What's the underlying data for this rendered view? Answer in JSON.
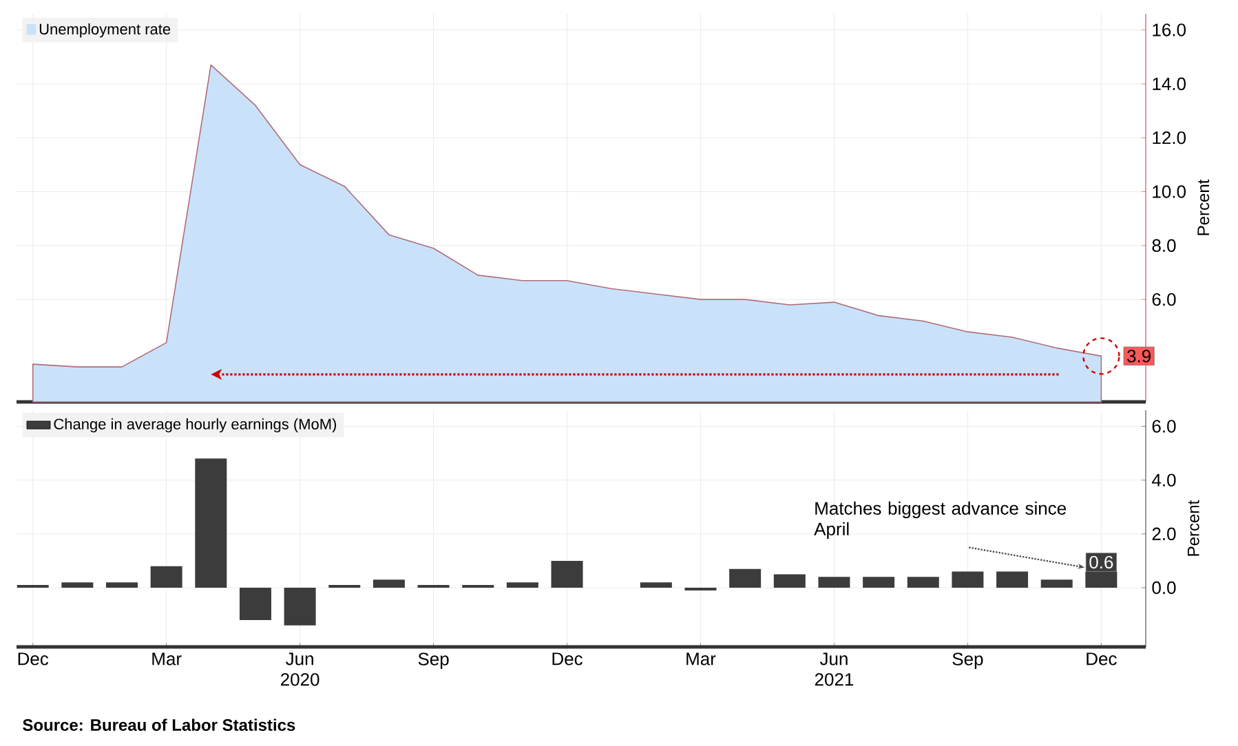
{
  "chart_data": [
    {
      "type": "area",
      "x": [
        "2019-12",
        "2020-01",
        "2020-02",
        "2020-03",
        "2020-04",
        "2020-05",
        "2020-06",
        "2020-07",
        "2020-08",
        "2020-09",
        "2020-10",
        "2020-11",
        "2020-12",
        "2021-01",
        "2021-02",
        "2021-03",
        "2021-04",
        "2021-05",
        "2021-06",
        "2021-07",
        "2021-08",
        "2021-09",
        "2021-10",
        "2021-11",
        "2021-12"
      ],
      "series": [
        {
          "name": "Unemployment rate",
          "color": "#c9e2fa",
          "values": [
            3.6,
            3.5,
            3.5,
            4.4,
            14.7,
            13.2,
            11.0,
            10.2,
            8.4,
            7.9,
            6.9,
            6.7,
            6.7,
            6.4,
            6.2,
            6.0,
            6.0,
            5.8,
            5.9,
            5.4,
            5.2,
            4.8,
            4.6,
            4.2,
            3.9
          ],
          "value_labels": [
            null,
            null,
            null,
            null,
            null,
            null,
            null,
            null,
            null,
            null,
            null,
            null,
            null,
            null,
            null,
            null,
            null,
            null,
            null,
            null,
            null,
            null,
            null,
            null,
            "3.9"
          ]
        }
      ],
      "xlim": [
        "2019-11-20",
        "2022-01-01"
      ],
      "ylim": [
        2.2,
        16.6
      ],
      "yticks": [
        {
          "value": 6,
          "label": "6.0"
        },
        {
          "value": 8,
          "label": "8.0"
        },
        {
          "value": 10,
          "label": "10.0"
        },
        {
          "value": 12,
          "label": "12.0"
        },
        {
          "value": 14,
          "label": "14.0"
        },
        {
          "value": 16,
          "label": "16.0"
        }
      ],
      "xticks": [
        {
          "value": "2019-12",
          "label": null
        },
        {
          "value": "2020-03",
          "label": null
        },
        {
          "value": "2020-06",
          "label": null
        },
        {
          "value": "2020-09",
          "label": null
        },
        {
          "value": "2020-12",
          "label": null
        },
        {
          "value": "2021-03",
          "label": null
        },
        {
          "value": "2021-06",
          "label": null
        },
        {
          "value": "2021-09",
          "label": null
        },
        {
          "value": "2021-12",
          "label": null
        }
      ],
      "ylabel": "Percent",
      "grid": true,
      "legend": "top left",
      "tick_labels": "y"
    },
    {
      "type": "bar",
      "x": [
        "2019-12",
        "2020-01",
        "2020-02",
        "2020-03",
        "2020-04",
        "2020-05",
        "2020-06",
        "2020-07",
        "2020-08",
        "2020-09",
        "2020-10",
        "2020-11",
        "2020-12",
        "2021-01",
        "2021-02",
        "2021-03",
        "2021-04",
        "2021-05",
        "2021-06",
        "2021-07",
        "2021-08",
        "2021-09",
        "2021-10",
        "2021-11",
        "2021-12"
      ],
      "series": [
        {
          "name": "Change in average hourly earnings (MoM)",
          "color": "#3c3c3c",
          "values": [
            0.1,
            0.2,
            0.2,
            0.8,
            4.8,
            -1.2,
            -1.4,
            0.1,
            0.3,
            0.1,
            0.1,
            0.2,
            1.0,
            0.0,
            0.2,
            -0.1,
            0.7,
            0.5,
            0.4,
            0.4,
            0.4,
            0.6,
            0.6,
            0.3,
            0.6
          ],
          "value_labels": [
            null,
            null,
            null,
            null,
            null,
            null,
            null,
            null,
            null,
            null,
            null,
            null,
            null,
            null,
            null,
            null,
            null,
            null,
            null,
            null,
            null,
            null,
            null,
            null,
            "0.6"
          ]
        }
      ],
      "xlim": [
        "2019-11-20",
        "2022-01-01"
      ],
      "ylim": [
        -2.2,
        6.6
      ],
      "yticks": [
        {
          "value": 0,
          "label": "0.0"
        },
        {
          "value": 2,
          "label": "2.0"
        },
        {
          "value": 4,
          "label": "4.0"
        },
        {
          "value": 6,
          "label": "6.0"
        }
      ],
      "xticks": [
        {
          "value": "2019-12",
          "label": "Dec"
        },
        {
          "value": "2020-03",
          "label": "Mar"
        },
        {
          "value": "2020-06",
          "label": "Jun 2020"
        },
        {
          "value": "2020-09",
          "label": "Sep"
        },
        {
          "value": "2020-12",
          "label": "Dec"
        },
        {
          "value": "2021-03",
          "label": "Mar"
        },
        {
          "value": "2021-06",
          "label": "Jun 2021"
        },
        {
          "value": "2021-09",
          "label": "Sep"
        },
        {
          "value": "2021-12",
          "label": "Dec"
        }
      ],
      "ylabel": "Percent",
      "grid": true,
      "legend": "top left",
      "annotations": [
        {
          "text": "Matches biggest advance since April",
          "x": "2021-12",
          "y": 0.6
        },
        "Source: Bureau of Labor Statistics"
      ]
    }
  ]
}
